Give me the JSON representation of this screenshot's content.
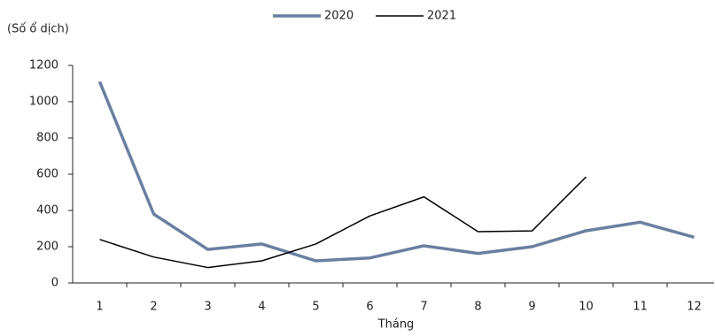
{
  "chart_data": {
    "type": "line",
    "y_unit_label": "(Số ổ dịch)",
    "x_label": "Tháng",
    "categories": [
      "1",
      "2",
      "3",
      "4",
      "5",
      "6",
      "7",
      "8",
      "9",
      "10",
      "11",
      "12"
    ],
    "series": [
      {
        "name": "2020",
        "color": "#6a7fa0",
        "values": [
          1110,
          380,
          185,
          215,
          122,
          138,
          205,
          163,
          200,
          288,
          335,
          252
        ]
      },
      {
        "name": "2021",
        "color": "#000000",
        "values": [
          240,
          143,
          85,
          122,
          215,
          370,
          475,
          283,
          287,
          585,
          null,
          null
        ]
      }
    ],
    "ylim": [
      0,
      1200
    ],
    "yticks": [
      0,
      200,
      400,
      600,
      800,
      1000,
      1200
    ],
    "grid": false,
    "legend": "top"
  }
}
